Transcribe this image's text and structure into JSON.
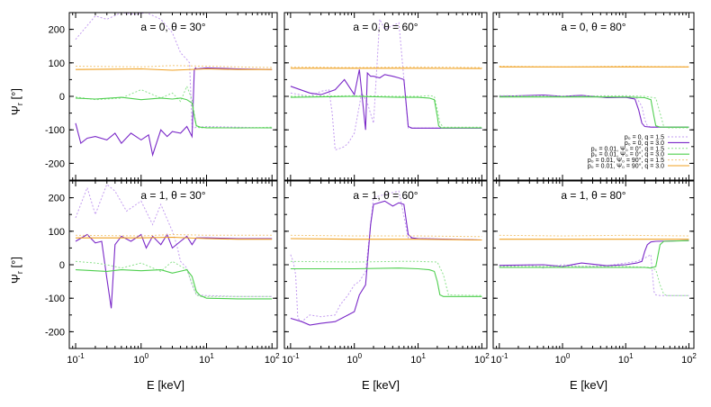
{
  "colors": {
    "q15_p0": "#c39cf0",
    "q30_p0": "#7a28c8",
    "q15_psi0": "#8ee28e",
    "q30_psi0": "#4fcf4f",
    "q15_psi90": "#f2c87a",
    "q30_psi90": "#f0a020"
  },
  "chart_data": {
    "type": "line",
    "x_axis": {
      "label": "E [keV]",
      "scale": "log",
      "range": [
        0.08,
        120
      ],
      "ticks": [
        {
          "value": 0.1,
          "base": "10",
          "exp": "-1"
        },
        {
          "value": 1,
          "base": "10",
          "exp": "0"
        },
        {
          "value": 10,
          "base": "10",
          "exp": "1"
        },
        {
          "value": 100,
          "base": "10",
          "exp": "2"
        }
      ]
    },
    "y_axis": {
      "label": "Ψ",
      "label_sub": "r",
      "label_unit": "[°]",
      "range": [
        -250,
        250
      ],
      "ticks": [
        "200",
        "100",
        "0",
        "-100",
        "-200"
      ]
    },
    "legend": {
      "placement": "lower-right of top-right panel",
      "entries": [
        "p₀ = 0, q = 1.5",
        "p₀ = 0, q = 3.0",
        "p₀ = 0.01, Ψ₀ = 0°, q = 1.5",
        "p₀ = 0.01, Ψ₀ = 0°, q = 3.0",
        "p₀ = 0.01, Ψ₀ = 90°, q = 1.5",
        "p₀ = 0.01, Ψ₀ = 90°, q = 3.0"
      ]
    },
    "panels": [
      {
        "title": "a = 0, θ = 30°",
        "series": [
          {
            "x": [
              0.1,
              0.2,
              0.3,
              0.5,
              0.8,
              1.2,
              2,
              3,
              4,
              5,
              5.5,
              6,
              6.5,
              7,
              10,
              30,
              100
            ],
            "y": [
              170,
              240,
              230,
              250,
              245,
              250,
              230,
              190,
              130,
              110,
              100,
              -90,
              -95,
              -92,
              -90,
              -92,
              -95
            ]
          },
          {
            "x": [
              0.1,
              0.12,
              0.15,
              0.2,
              0.3,
              0.4,
              0.5,
              0.7,
              1,
              1.3,
              1.5,
              2,
              2.5,
              3,
              4,
              5,
              6,
              6.5,
              6.8,
              7,
              10,
              30,
              100
            ],
            "y": [
              -80,
              -140,
              -125,
              -120,
              -130,
              -110,
              -140,
              -110,
              -130,
              -115,
              -175,
              -100,
              -120,
              -105,
              -110,
              -90,
              -120,
              80,
              85,
              82,
              85,
              82,
              80
            ]
          },
          {
            "x": [
              0.1,
              0.2,
              0.5,
              1,
              2,
              3,
              4,
              5,
              6,
              7,
              8,
              10,
              30,
              100
            ],
            "y": [
              -2,
              -10,
              -5,
              20,
              -5,
              10,
              -15,
              30,
              -10,
              -90,
              -95,
              -92,
              -95,
              -92
            ]
          },
          {
            "x": [
              0.1,
              0.2,
              0.5,
              1,
              2,
              3,
              4,
              5,
              6,
              6.5,
              7,
              8,
              10,
              30,
              100
            ],
            "y": [
              -5,
              -8,
              -3,
              -10,
              -5,
              -8,
              -5,
              -10,
              -20,
              -60,
              -88,
              -92,
              -94,
              -94,
              -94
            ]
          },
          {
            "x": [
              0.1,
              1,
              3,
              10,
              30,
              100
            ],
            "y": [
              90,
              88,
              92,
              90,
              88,
              86
            ]
          },
          {
            "x": [
              0.1,
              1,
              3,
              10,
              30,
              100
            ],
            "y": [
              80,
              82,
              78,
              82,
              80,
              80
            ]
          }
        ]
      },
      {
        "title": "a = 0, θ = 60°",
        "series": [
          {
            "x": [
              0.1,
              0.2,
              0.3,
              0.4,
              0.45,
              0.5,
              0.6,
              0.7,
              0.8,
              1,
              1.3,
              1.6,
              2,
              2.5,
              3,
              5,
              7,
              10,
              30,
              100
            ],
            "y": [
              10,
              0,
              15,
              20,
              -50,
              -160,
              -155,
              -150,
              -140,
              -110,
              10,
              -20,
              -80,
              230,
              200,
              220,
              -95,
              -95,
              -95,
              -95
            ]
          },
          {
            "x": [
              0.1,
              0.2,
              0.3,
              0.5,
              0.7,
              1,
              1.2,
              1.5,
              1.6,
              1.8,
              2,
              2.5,
              3,
              4,
              5,
              6,
              7,
              8,
              10,
              30,
              100
            ],
            "y": [
              30,
              10,
              5,
              20,
              50,
              5,
              80,
              -100,
              70,
              60,
              60,
              55,
              65,
              60,
              55,
              50,
              -90,
              -95,
              -95,
              -95,
              -95
            ]
          },
          {
            "x": [
              0.1,
              1,
              5,
              10,
              15,
              18,
              20,
              22,
              25,
              30,
              100
            ],
            "y": [
              0,
              2,
              0,
              0,
              2,
              0,
              -40,
              -80,
              -92,
              -92,
              -92
            ]
          },
          {
            "x": [
              0.1,
              1,
              5,
              10,
              15,
              18,
              20,
              21,
              23,
              30,
              100
            ],
            "y": [
              -3,
              0,
              -3,
              -3,
              -5,
              -10,
              -60,
              -88,
              -94,
              -94,
              -94
            ]
          },
          {
            "x": [
              0.1,
              1,
              10,
              100
            ],
            "y": [
              88,
              86,
              88,
              86
            ]
          },
          {
            "x": [
              0.1,
              1,
              10,
              100
            ],
            "y": [
              84,
              84,
              84,
              83
            ]
          }
        ]
      },
      {
        "title": "a = 0, θ = 80°",
        "series": [
          {
            "x": [
              0.1,
              1,
              5,
              10,
              15,
              18,
              20,
              22,
              25,
              30,
              100
            ],
            "y": [
              2,
              0,
              2,
              0,
              -5,
              -30,
              -70,
              -88,
              -92,
              -92,
              -92
            ]
          },
          {
            "x": [
              0.1,
              0.5,
              1,
              2,
              5,
              10,
              14,
              16,
              18,
              20,
              25,
              100
            ],
            "y": [
              0,
              4,
              0,
              3,
              -4,
              -3,
              -8,
              -40,
              -80,
              -90,
              -92,
              -92
            ]
          },
          {
            "x": [
              0.1,
              1,
              10,
              20,
              30,
              35,
              40,
              45,
              100
            ],
            "y": [
              2,
              0,
              2,
              0,
              -5,
              -50,
              -90,
              -94,
              -94
            ]
          },
          {
            "x": [
              0.1,
              1,
              10,
              20,
              25,
              28,
              30,
              35,
              100
            ],
            "y": [
              -2,
              -2,
              -2,
              -4,
              -10,
              -60,
              -88,
              -92,
              -92
            ]
          },
          {
            "x": [
              0.1,
              1,
              10,
              100
            ],
            "y": [
              90,
              88,
              90,
              88
            ]
          },
          {
            "x": [
              0.1,
              1,
              10,
              100
            ],
            "y": [
              88,
              88,
              88,
              88
            ]
          }
        ]
      },
      {
        "title": "a = 1, θ = 30°",
        "series": [
          {
            "x": [
              0.1,
              0.15,
              0.2,
              0.3,
              0.4,
              0.6,
              1,
              1.5,
              2,
              3,
              3.5,
              4,
              5,
              6,
              7,
              10,
              30,
              100
            ],
            "y": [
              140,
              230,
              150,
              240,
              220,
              160,
              190,
              120,
              180,
              100,
              60,
              10,
              -10,
              -60,
              -90,
              -92,
              -95,
              -95
            ]
          },
          {
            "x": [
              0.1,
              0.15,
              0.2,
              0.25,
              0.3,
              0.35,
              0.4,
              0.5,
              0.7,
              1,
              1.2,
              1.5,
              2,
              2.5,
              3,
              4,
              5,
              6,
              7,
              10,
              30,
              100
            ],
            "y": [
              70,
              90,
              65,
              70,
              -40,
              -130,
              60,
              85,
              70,
              90,
              50,
              85,
              60,
              90,
              50,
              70,
              85,
              60,
              80,
              80,
              78,
              78
            ]
          },
          {
            "x": [
              0.1,
              0.2,
              0.3,
              0.5,
              1,
              2,
              3,
              5,
              7,
              8,
              10,
              30,
              100
            ],
            "y": [
              10,
              5,
              0,
              -10,
              5,
              -20,
              10,
              -15,
              -90,
              -95,
              -95,
              -95,
              -95
            ]
          },
          {
            "x": [
              0.1,
              0.3,
              0.5,
              1,
              2,
              3,
              5,
              6,
              7,
              8,
              10,
              30,
              100
            ],
            "y": [
              -15,
              -20,
              -15,
              -18,
              -15,
              -25,
              -15,
              -35,
              -80,
              -92,
              -100,
              -102,
              -102
            ]
          },
          {
            "x": [
              0.1,
              1,
              3,
              10,
              30,
              100
            ],
            "y": [
              88,
              86,
              90,
              88,
              88,
              88
            ]
          },
          {
            "x": [
              0.1,
              1,
              3,
              10,
              30,
              100
            ],
            "y": [
              80,
              80,
              82,
              78,
              76,
              76
            ]
          }
        ]
      },
      {
        "title": "a = 1, θ = 60°",
        "series": [
          {
            "x": [
              0.1,
              0.11,
              0.12,
              0.13,
              0.15,
              0.2,
              0.3,
              0.5,
              0.6,
              0.8,
              1,
              1.2,
              1.5,
              2,
              3,
              5,
              7,
              10,
              30,
              100
            ],
            "y": [
              30,
              10,
              -30,
              -160,
              -170,
              -150,
              -155,
              -150,
              -120,
              -90,
              -60,
              -50,
              -20,
              200,
              210,
              220,
              80,
              78,
              76,
              74
            ]
          },
          {
            "x": [
              0.1,
              0.15,
              0.2,
              0.3,
              0.5,
              0.8,
              1,
              1.2,
              1.5,
              1.8,
              2,
              3,
              4,
              5,
              6,
              7,
              8,
              10,
              30,
              100
            ],
            "y": [
              -160,
              -170,
              -180,
              -175,
              -170,
              -150,
              -140,
              -90,
              -60,
              120,
              180,
              190,
              175,
              185,
              180,
              90,
              80,
              78,
              76,
              74
            ]
          },
          {
            "x": [
              0.1,
              1,
              5,
              10,
              20,
              25,
              30,
              100
            ],
            "y": [
              10,
              8,
              10,
              10,
              8,
              -30,
              -90,
              -92
            ]
          },
          {
            "x": [
              0.1,
              1,
              5,
              10,
              15,
              18,
              20,
              22,
              25,
              30,
              100
            ],
            "y": [
              -12,
              -12,
              -10,
              -12,
              -15,
              -20,
              -50,
              -90,
              -95,
              -95,
              -95
            ]
          },
          {
            "x": [
              0.1,
              1,
              10,
              100
            ],
            "y": [
              88,
              86,
              86,
              84
            ]
          },
          {
            "x": [
              0.1,
              1,
              10,
              100
            ],
            "y": [
              78,
              76,
              76,
              74
            ]
          }
        ]
      },
      {
        "title": "a = 1, θ = 80°",
        "series": [
          {
            "x": [
              0.1,
              0.3,
              0.5,
              1,
              2,
              5,
              10,
              15,
              20,
              25,
              28,
              30,
              35,
              100
            ],
            "y": [
              -5,
              0,
              -10,
              0,
              -5,
              -3,
              5,
              10,
              20,
              30,
              -80,
              -90,
              -92,
              -92
            ]
          },
          {
            "x": [
              0.1,
              0.5,
              1,
              2,
              5,
              10,
              15,
              18,
              20,
              22,
              25,
              30,
              100
            ],
            "y": [
              -2,
              0,
              -5,
              5,
              -3,
              0,
              5,
              10,
              40,
              60,
              68,
              70,
              72
            ]
          },
          {
            "x": [
              0.1,
              1,
              10,
              25,
              30,
              35,
              40,
              45,
              100
            ],
            "y": [
              -5,
              -5,
              -5,
              -8,
              -15,
              -60,
              -88,
              -92,
              -92
            ]
          },
          {
            "x": [
              0.1,
              1,
              10,
              20,
              25,
              30,
              35,
              40,
              100
            ],
            "y": [
              -8,
              -8,
              -8,
              -8,
              -10,
              -5,
              60,
              70,
              72
            ]
          },
          {
            "x": [
              0.1,
              1,
              10,
              100
            ],
            "y": [
              88,
              86,
              88,
              86
            ]
          },
          {
            "x": [
              0.1,
              1,
              10,
              100
            ],
            "y": [
              76,
              76,
              76,
              76
            ]
          }
        ]
      }
    ]
  }
}
